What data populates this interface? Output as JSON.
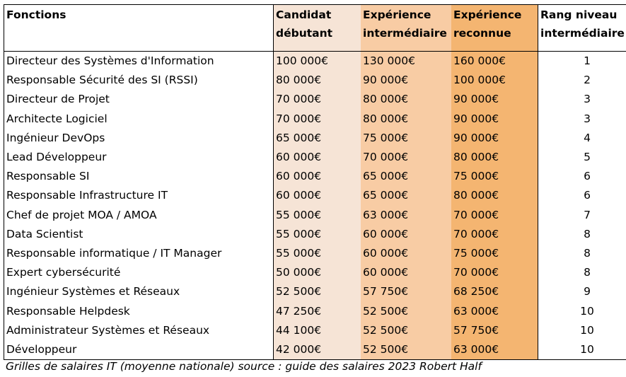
{
  "table": {
    "headers": {
      "fonction": "Fonctions",
      "debutant": [
        "Candidat",
        "débutant"
      ],
      "intermediaire": [
        "Expérience",
        "intermédiaire"
      ],
      "reconnue": [
        "Expérience",
        "reconnue"
      ],
      "rang": [
        "Rang niveau",
        "intermédiaire"
      ]
    },
    "rows": [
      {
        "fonction": "Directeur des Systèmes d'Information",
        "debutant": "100 000€",
        "intermediaire": "130 000€",
        "reconnue": "160 000€",
        "rang": "1"
      },
      {
        "fonction": "Responsable Sécurité des SI (RSSI)",
        "debutant": "80 000€",
        "intermediaire": "90 000€",
        "reconnue": "100 000€",
        "rang": "2"
      },
      {
        "fonction": "Directeur de Projet",
        "debutant": "70 000€",
        "intermediaire": "80 000€",
        "reconnue": "90 000€",
        "rang": "3"
      },
      {
        "fonction": "Architecte Logiciel",
        "debutant": "70 000€",
        "intermediaire": "80 000€",
        "reconnue": "90 000€",
        "rang": "3"
      },
      {
        "fonction": "Ingénieur DevOps",
        "debutant": "65 000€",
        "intermediaire": "75 000€",
        "reconnue": "90 000€",
        "rang": "4"
      },
      {
        "fonction": "Lead Développeur",
        "debutant": "60 000€",
        "intermediaire": "70 000€",
        "reconnue": "80 000€",
        "rang": "5"
      },
      {
        "fonction": "Responsable SI",
        "debutant": "60 000€",
        "intermediaire": "65 000€",
        "reconnue": "75 000€",
        "rang": "6"
      },
      {
        "fonction": "Responsable Infrastructure IT",
        "debutant": "60 000€",
        "intermediaire": "65 000€",
        "reconnue": "80 000€",
        "rang": "6"
      },
      {
        "fonction": "Chef de projet MOA / AMOA",
        "debutant": "55 000€",
        "intermediaire": "63 000€",
        "reconnue": "70 000€",
        "rang": "7"
      },
      {
        "fonction": "Data Scientist",
        "debutant": "55 000€",
        "intermediaire": "60 000€",
        "reconnue": "70 000€",
        "rang": "8"
      },
      {
        "fonction": "Responsable informatique / IT Manager",
        "debutant": "55 000€",
        "intermediaire": "60 000€",
        "reconnue": "75 000€",
        "rang": "8"
      },
      {
        "fonction": "Expert cybersécurité",
        "debutant": "50 000€",
        "intermediaire": "60 000€",
        "reconnue": "70 000€",
        "rang": "8"
      },
      {
        "fonction": "Ingénieur Systèmes et Réseaux",
        "debutant": "52 500€",
        "intermediaire": "57 750€",
        "reconnue": "68 250€",
        "rang": "9"
      },
      {
        "fonction": "Responsable Helpdesk",
        "debutant": "47 250€",
        "intermediaire": "52 500€",
        "reconnue": "63 000€",
        "rang": "10"
      },
      {
        "fonction": "Administrateur Systèmes et Réseaux",
        "debutant": "44 100€",
        "intermediaire": "52 500€",
        "reconnue": "57 750€",
        "rang": "10"
      },
      {
        "fonction": "Développeur",
        "debutant": "42 000€",
        "intermediaire": "52 500€",
        "reconnue": "63 000€",
        "rang": "10"
      }
    ]
  },
  "caption": "Grilles de salaires IT (moyenne nationale) source : guide des salaires 2023 Robert Half",
  "colors": {
    "debutant_bg": "#f6e4d6",
    "intermediaire_bg": "#f8cca4",
    "reconnue_bg": "#f4b571"
  }
}
